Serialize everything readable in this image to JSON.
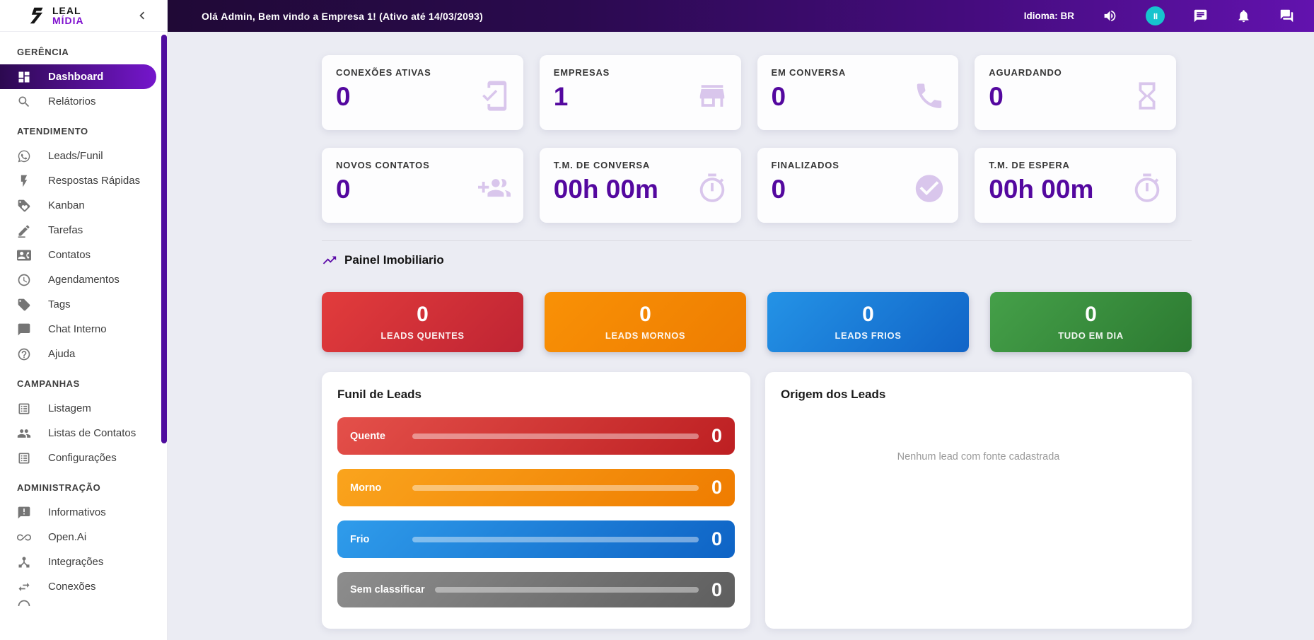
{
  "brand": {
    "line1": "LEAL",
    "line2": "MÍDIA"
  },
  "topbar": {
    "greeting": {
      "prefix": "Olá ",
      "user": "Admin",
      "mid": ", Bem vindo a ",
      "company": "Empresa 1",
      "suffix": "! (Ativo até 14/03/2093)"
    },
    "language": "Idioma: BR",
    "icons": [
      {
        "icon": "volume-icon",
        "style": "plain"
      },
      {
        "icon": "pause-icon",
        "style": "teal-circle",
        "color": "#17c4ce"
      },
      {
        "icon": "message-icon",
        "style": "plain"
      },
      {
        "icon": "bell-icon",
        "style": "plain"
      },
      {
        "icon": "forum-icon",
        "style": "plain"
      }
    ]
  },
  "sidebar": {
    "sections": [
      {
        "label": "GERÊNCIA",
        "items": [
          {
            "label": "Dashboard",
            "icon": "dashboard-icon",
            "active": true
          },
          {
            "label": "Relátorios",
            "icon": "search-icon"
          }
        ]
      },
      {
        "label": "ATENDIMENTO",
        "items": [
          {
            "label": "Leads/Funil",
            "icon": "whatsapp-icon"
          },
          {
            "label": "Respostas Rápidas",
            "icon": "bolt-icon"
          },
          {
            "label": "Kanban",
            "icon": "tag-heart-icon"
          },
          {
            "label": "Tarefas",
            "icon": "edit-icon"
          },
          {
            "label": "Contatos",
            "icon": "contact-card-icon"
          },
          {
            "label": "Agendamentos",
            "icon": "clock-icon"
          },
          {
            "label": "Tags",
            "icon": "tag-icon"
          },
          {
            "label": "Chat Interno",
            "icon": "chat-icon"
          },
          {
            "label": "Ajuda",
            "icon": "help-icon"
          }
        ]
      },
      {
        "label": "CAMPANHAS",
        "items": [
          {
            "label": "Listagem",
            "icon": "list-icon"
          },
          {
            "label": "Listas de Contatos",
            "icon": "people-icon"
          },
          {
            "label": "Configurações",
            "icon": "list-icon"
          }
        ]
      },
      {
        "label": "ADMINISTRAÇÃO",
        "items": [
          {
            "label": "Informativos",
            "icon": "announcement-icon"
          },
          {
            "label": "Open.Ai",
            "icon": "infinity-icon"
          },
          {
            "label": "Integrações",
            "icon": "hub-icon"
          },
          {
            "label": "Conexões",
            "icon": "swap-icon"
          }
        ]
      }
    ],
    "partial_item": {
      "icon": "circle-icon"
    }
  },
  "stats": [
    {
      "label": "CONEXÕES ATIVAS",
      "value": "0",
      "icon": "mobile-check-icon"
    },
    {
      "label": "EMPRESAS",
      "value": "1",
      "icon": "store-icon"
    },
    {
      "label": "EM CONVERSA",
      "value": "0",
      "icon": "phone-icon"
    },
    {
      "label": "AGUARDANDO",
      "value": "0",
      "icon": "hourglass-icon"
    },
    {
      "label": "NOVOS CONTATOS",
      "value": "0",
      "icon": "person-add-icon"
    },
    {
      "label": "T.M. DE CONVERSA",
      "value": "00h 00m",
      "icon": "stopwatch-icon"
    },
    {
      "label": "FINALIZADOS",
      "value": "0",
      "icon": "check-circle-icon"
    },
    {
      "label": "T.M. DE ESPERA",
      "value": "00h 00m",
      "icon": "stopwatch-icon"
    }
  ],
  "section": {
    "title": "Painel Imobiliario",
    "icon": "trend-up-icon"
  },
  "lead_summary": [
    {
      "value": "0",
      "label": "LEADS QUENTES",
      "gradient": [
        "#e23c3c",
        "#bf2433"
      ]
    },
    {
      "value": "0",
      "label": "LEADS MORNOS",
      "gradient": [
        "#f99106",
        "#ee7d01"
      ]
    },
    {
      "value": "0",
      "label": "LEADS FRIOS",
      "gradient": [
        "#2493e6",
        "#1164c7"
      ]
    },
    {
      "value": "0",
      "label": "TUDO EM DIA",
      "gradient": [
        "#45a049",
        "#2c7a31"
      ]
    }
  ],
  "funnel": {
    "title": "Funil de Leads",
    "bars": [
      {
        "label": "Quente",
        "value": "0",
        "gradient": [
          "#e4504a",
          "#bd1f22"
        ]
      },
      {
        "label": "Morno",
        "value": "0",
        "gradient": [
          "#faa41d",
          "#ef7c00"
        ]
      },
      {
        "label": "Frio",
        "value": "0",
        "gradient": [
          "#2f9ceb",
          "#0e63c5"
        ]
      },
      {
        "label": "Sem classificar",
        "value": "0",
        "gradient": [
          "#8d8d8d",
          "#5e5e5e"
        ]
      }
    ]
  },
  "origin": {
    "title": "Origem dos Leads",
    "empty_text": "Nenhum lead com fonte cadastrada"
  },
  "colors": {
    "accent_purple": "#54089f",
    "topbar_gradient": [
      "#200936",
      "#6212ae"
    ],
    "pause_button": "#17c4ce",
    "stat_icon": "#d9c6ec",
    "scrollbar": "#4e0c9d"
  }
}
